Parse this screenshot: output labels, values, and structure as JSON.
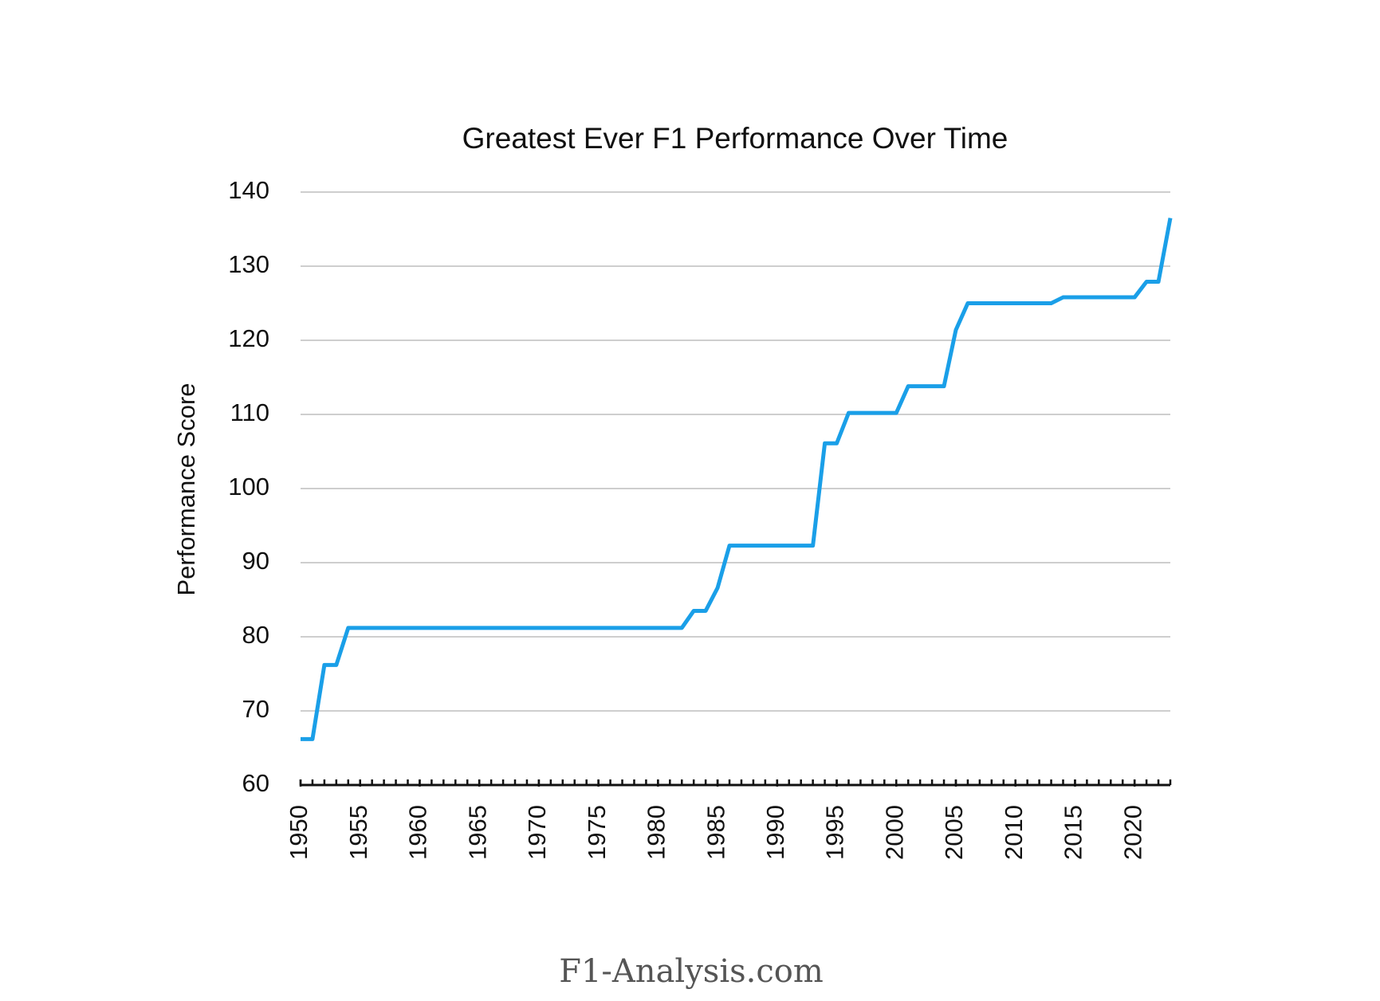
{
  "chart_data": {
    "type": "line",
    "title": "Greatest Ever F1 Performance Over Time",
    "y_label": "Performance Score",
    "watermark": "F1-Analysis.com",
    "x": [
      1950,
      1951,
      1952,
      1953,
      1954,
      1955,
      1956,
      1957,
      1958,
      1959,
      1960,
      1961,
      1962,
      1963,
      1964,
      1965,
      1966,
      1967,
      1968,
      1969,
      1970,
      1971,
      1972,
      1973,
      1974,
      1975,
      1976,
      1977,
      1978,
      1979,
      1980,
      1981,
      1982,
      1983,
      1984,
      1985,
      1986,
      1987,
      1988,
      1989,
      1990,
      1991,
      1992,
      1993,
      1994,
      1995,
      1996,
      1997,
      1998,
      1999,
      2000,
      2001,
      2002,
      2003,
      2004,
      2005,
      2006,
      2007,
      2008,
      2009,
      2010,
      2011,
      2012,
      2013,
      2014,
      2015,
      2016,
      2017,
      2018,
      2019,
      2020,
      2021,
      2022,
      2023
    ],
    "series": [
      {
        "name": "Performance Score",
        "color": "#1a9fe8",
        "values": [
          66.2,
          66.2,
          76.2,
          76.2,
          81.2,
          81.2,
          81.2,
          81.2,
          81.2,
          81.2,
          81.2,
          81.2,
          81.2,
          81.2,
          81.2,
          81.2,
          81.2,
          81.2,
          81.2,
          81.2,
          81.2,
          81.2,
          81.2,
          81.2,
          81.2,
          81.2,
          81.2,
          81.2,
          81.2,
          81.2,
          81.2,
          81.2,
          81.2,
          83.5,
          83.5,
          86.6,
          92.3,
          92.3,
          92.3,
          92.3,
          92.3,
          92.3,
          92.3,
          92.3,
          106.1,
          106.1,
          110.2,
          110.2,
          110.2,
          110.2,
          110.2,
          113.8,
          113.8,
          113.8,
          113.8,
          121.4,
          125,
          125,
          125,
          125,
          125,
          125,
          125,
          125,
          125.8,
          125.8,
          125.8,
          125.8,
          125.8,
          125.8,
          125.8,
          127.9,
          127.9,
          136.5
        ]
      }
    ],
    "xlim": [
      1950,
      2023
    ],
    "xticks": [
      1950,
      1955,
      1960,
      1965,
      1970,
      1975,
      1980,
      1985,
      1990,
      1995,
      2000,
      2005,
      2010,
      2015,
      2020
    ],
    "ylim": [
      60,
      140
    ],
    "yticks": [
      60,
      70,
      80,
      90,
      100,
      110,
      120,
      130,
      140
    ],
    "grid": true
  }
}
